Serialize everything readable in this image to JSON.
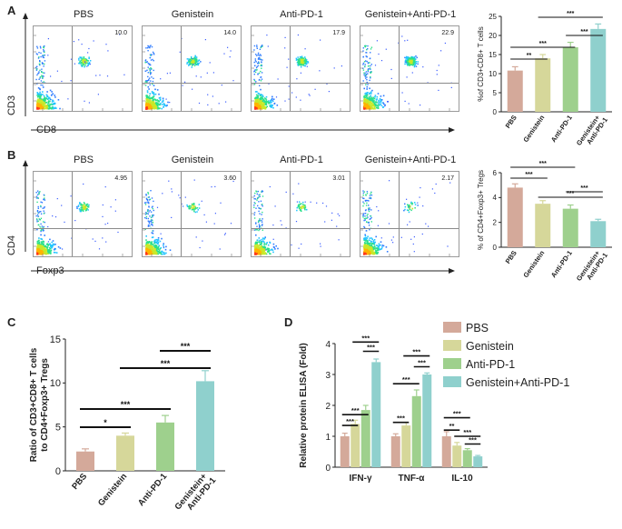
{
  "panels": {
    "A": {
      "letter": "A",
      "flow_titles": [
        "PBS",
        "Genistein",
        "Anti-PD-1",
        "Genistein+Anti-PD-1"
      ],
      "flow_values": [
        "10.0",
        "14.0",
        "17.9",
        "22.9"
      ],
      "y_marker": "CD3",
      "x_marker": "CD8"
    },
    "B": {
      "letter": "B",
      "flow_titles": [
        "PBS",
        "Genistein",
        "Anti-PD-1",
        "Genistein+Anti-PD-1"
      ],
      "flow_values": [
        "4.95",
        "3.60",
        "3.01",
        "2.17"
      ],
      "y_marker": "CD4",
      "x_marker": "Foxp3"
    },
    "C": {
      "letter": "C"
    },
    "D": {
      "letter": "D"
    }
  },
  "colors": {
    "pbs": "#d4a99a",
    "genistein": "#d6d79a",
    "anti_pd1": "#9ed08d",
    "combo": "#8fd0cd"
  },
  "chart_data": [
    {
      "id": "A",
      "type": "bar",
      "categories": [
        "PBS",
        "Genistein",
        "Anti-PD-1",
        "Genistein+Anti-PD-1"
      ],
      "category_labels": [
        "PBS",
        "Genistein",
        "Anti-PD-1",
        "Genistein+ Anti-PD-1"
      ],
      "values": [
        10.8,
        14.0,
        16.9,
        21.7
      ],
      "errors": [
        1.0,
        1.0,
        1.3,
        1.3
      ],
      "ylabel": "%of CD3+CD8+ T cells",
      "ylim": [
        0,
        25
      ],
      "yticks": [
        0,
        5,
        10,
        15,
        20,
        25
      ],
      "significance": [
        {
          "from": 0,
          "to": 1,
          "label": "**"
        },
        {
          "from": 0,
          "to": 2,
          "label": "***"
        },
        {
          "from": 2,
          "to": 3,
          "label": "***"
        },
        {
          "from": 1,
          "to": 3,
          "label": "***"
        }
      ]
    },
    {
      "id": "B",
      "type": "bar",
      "categories": [
        "PBS",
        "Genistein",
        "Anti-PD-1",
        "Genistein+Anti-PD-1"
      ],
      "category_labels": [
        "PBS",
        "Genistein",
        "Anti-PD-1",
        "Genistein+ Anti-PD-1"
      ],
      "values": [
        4.8,
        3.5,
        3.1,
        2.1
      ],
      "errors": [
        0.3,
        0.25,
        0.3,
        0.15
      ],
      "ylabel": "% of CD4+Foxp3+ Tregs",
      "ylim": [
        0,
        6
      ],
      "yticks": [
        0,
        2,
        4,
        6
      ],
      "significance": [
        {
          "from": 0,
          "to": 1,
          "label": "***"
        },
        {
          "from": 0,
          "to": 2,
          "label": "***"
        },
        {
          "from": 1,
          "to": 3,
          "label": "***"
        },
        {
          "from": 2,
          "to": 3,
          "label": "***"
        }
      ]
    },
    {
      "id": "C",
      "type": "bar",
      "categories": [
        "PBS",
        "Genistein",
        "Anti-PD-1",
        "Genistein+Anti-PD-1"
      ],
      "category_labels": [
        "PBS",
        "Genistein",
        "Anti-PD-1",
        "Genistein+ Anti-PD-1"
      ],
      "values": [
        2.2,
        4.0,
        5.5,
        10.2
      ],
      "errors": [
        0.3,
        0.3,
        0.8,
        1.2
      ],
      "ylabel": "Ratio of CD3+CD8+ T cells to CD4+Foxp3+ Tregs",
      "ylim": [
        0,
        15
      ],
      "yticks": [
        0,
        5,
        10,
        15
      ],
      "significance": [
        {
          "from": 0,
          "to": 1,
          "label": "*"
        },
        {
          "from": 0,
          "to": 2,
          "label": "***"
        },
        {
          "from": 2,
          "to": 3,
          "label": "***"
        },
        {
          "from": 1,
          "to": 3,
          "label": "***"
        }
      ]
    },
    {
      "id": "D",
      "type": "bar",
      "groups": [
        "IFN-γ",
        "TNF-α",
        "IL-10"
      ],
      "series": [
        {
          "name": "PBS",
          "values": [
            1.0,
            1.0,
            1.0
          ],
          "errors": [
            0.1,
            0.08,
            0.15
          ]
        },
        {
          "name": "Genistein",
          "values": [
            1.4,
            1.35,
            0.7
          ],
          "errors": [
            0.12,
            0.1,
            0.1
          ]
        },
        {
          "name": "Anti-PD-1",
          "values": [
            1.85,
            2.3,
            0.55
          ],
          "errors": [
            0.15,
            0.2,
            0.05
          ]
        },
        {
          "name": "Genistein+Anti-PD-1",
          "values": [
            3.4,
            3.0,
            0.35
          ],
          "errors": [
            0.1,
            0.05,
            0.03
          ]
        }
      ],
      "ylabel": "Relative protein ELISA (Fold)",
      "ylim": [
        0,
        4
      ],
      "yticks": [
        0,
        1,
        2,
        3,
        4
      ],
      "significance": [
        {
          "group": 0,
          "pairs": [
            [
              0,
              1,
              "***"
            ],
            [
              0,
              2,
              "***"
            ],
            [
              2,
              3,
              "***"
            ],
            [
              1,
              3,
              "***"
            ]
          ]
        },
        {
          "group": 1,
          "pairs": [
            [
              0,
              1,
              "***"
            ],
            [
              0,
              2,
              "***"
            ],
            [
              2,
              3,
              "***"
            ],
            [
              1,
              3,
              "***"
            ]
          ]
        },
        {
          "group": 2,
          "pairs": [
            [
              0,
              1,
              "**"
            ],
            [
              0,
              2,
              "***"
            ],
            [
              2,
              3,
              "***"
            ],
            [
              1,
              3,
              "***"
            ]
          ]
        }
      ]
    }
  ]
}
